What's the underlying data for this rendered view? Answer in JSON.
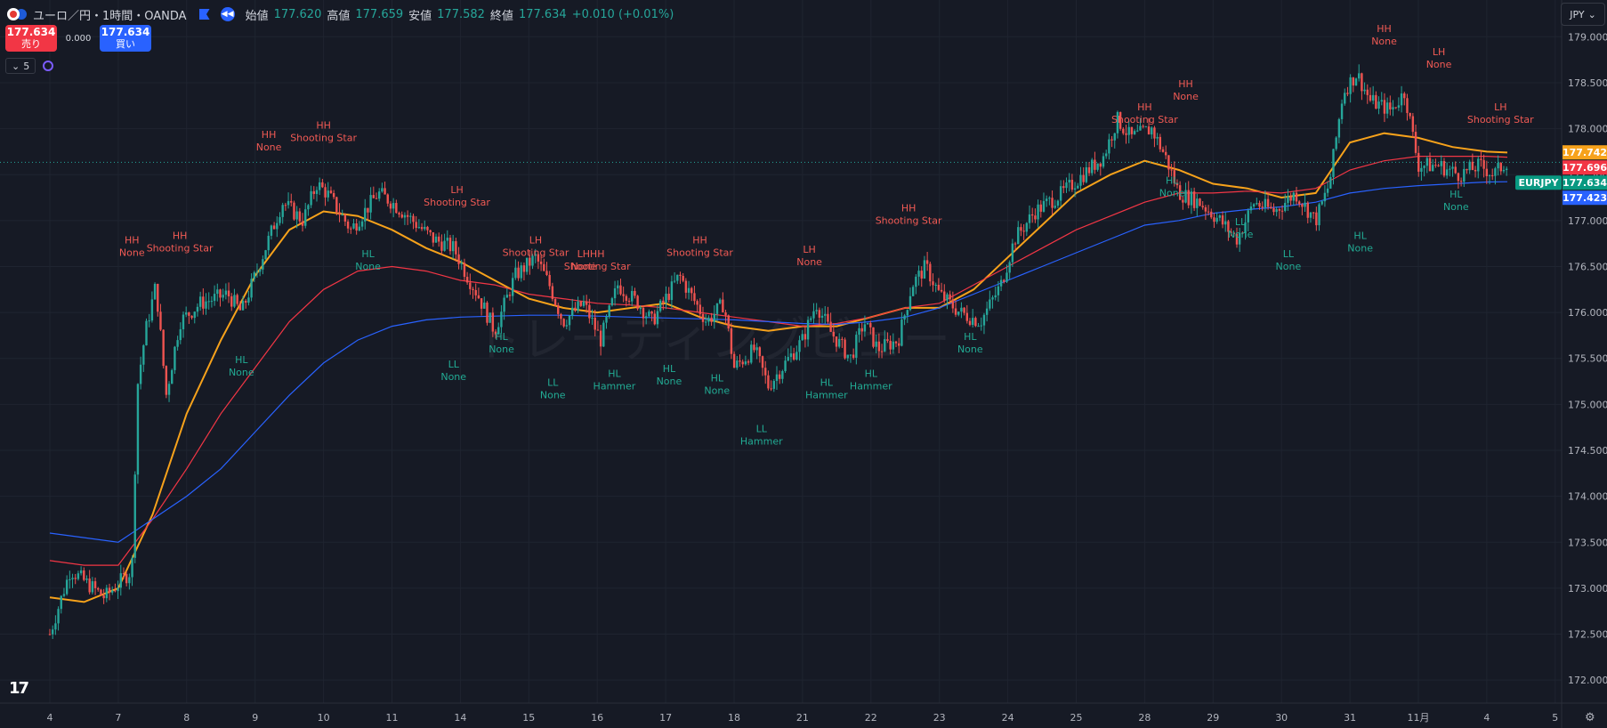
{
  "header": {
    "symbol_title": "ユーロ／円・1時間・OANDA",
    "open_label": "始値",
    "open_value": "177.620",
    "high_label": "高値",
    "high_value": "177.659",
    "low_label": "安値",
    "low_value": "177.582",
    "close_label": "終値",
    "close_value": "177.634",
    "change": "+0.010 (+0.01%)"
  },
  "trade": {
    "sell_price": "177.634",
    "sell_label": "売り",
    "spread": "0.000",
    "buy_price": "177.634",
    "buy_label": "買い"
  },
  "indicators_toggle": {
    "count": "5"
  },
  "currency_button": {
    "label": "JPY"
  },
  "watermark": "トレーディングビュー",
  "colors": {
    "background": "#161a25",
    "grid": "#1f2430",
    "up": "#26a69a",
    "down": "#ef5350",
    "ma_fast": "#f7a21b",
    "ma_mid": "#f23645",
    "ma_slow": "#2962ff",
    "label_high": "#f05a54",
    "label_low": "#22ab94"
  },
  "chart_data": {
    "type": "candlestick",
    "symbol": "EURJPY",
    "ylim": [
      171.75,
      179.4
    ],
    "y_ticks": [
      "172.000",
      "172.500",
      "173.000",
      "173.500",
      "174.000",
      "174.500",
      "175.000",
      "175.500",
      "176.000",
      "176.500",
      "177.000",
      "177.500",
      "178.000",
      "178.500",
      "179.000"
    ],
    "x_ticks": [
      {
        "label": "4",
        "pos": 0
      },
      {
        "label": "7",
        "pos": 1
      },
      {
        "label": "8",
        "pos": 2
      },
      {
        "label": "9",
        "pos": 3
      },
      {
        "label": "10",
        "pos": 4
      },
      {
        "label": "11",
        "pos": 5
      },
      {
        "label": "14",
        "pos": 6
      },
      {
        "label": "15",
        "pos": 7
      },
      {
        "label": "16",
        "pos": 8
      },
      {
        "label": "17",
        "pos": 9
      },
      {
        "label": "18",
        "pos": 10
      },
      {
        "label": "21",
        "pos": 11
      },
      {
        "label": "22",
        "pos": 12
      },
      {
        "label": "23",
        "pos": 13
      },
      {
        "label": "24",
        "pos": 14
      },
      {
        "label": "25",
        "pos": 15
      },
      {
        "label": "28",
        "pos": 16
      },
      {
        "label": "29",
        "pos": 17
      },
      {
        "label": "30",
        "pos": 18
      },
      {
        "label": "31",
        "pos": 19
      },
      {
        "label": "11月",
        "pos": 20
      },
      {
        "label": "4",
        "pos": 21
      },
      {
        "label": "5",
        "pos": 22
      }
    ],
    "price_path": [
      [
        0,
        172.5
      ],
      [
        0.3,
        173.2
      ],
      [
        0.8,
        172.9
      ],
      [
        1.2,
        173.2
      ],
      [
        1.28,
        175.2
      ],
      [
        1.4,
        175.8
      ],
      [
        1.55,
        176.3
      ],
      [
        1.7,
        175.1
      ],
      [
        1.9,
        175.9
      ],
      [
        2.2,
        176.1
      ],
      [
        2.6,
        176.2
      ],
      [
        2.8,
        176.0
      ],
      [
        3.1,
        176.6
      ],
      [
        3.4,
        177.2
      ],
      [
        3.7,
        177.0
      ],
      [
        3.9,
        177.4
      ],
      [
        4.05,
        177.3
      ],
      [
        4.4,
        176.9
      ],
      [
        4.8,
        177.3
      ],
      [
        5.0,
        177.2
      ],
      [
        5.3,
        177.0
      ],
      [
        5.6,
        176.8
      ],
      [
        5.9,
        176.7
      ],
      [
        6.1,
        176.4
      ],
      [
        6.25,
        176.2
      ],
      [
        6.5,
        175.8
      ],
      [
        6.8,
        176.4
      ],
      [
        7.1,
        176.6
      ],
      [
        7.3,
        176.3
      ],
      [
        7.5,
        175.9
      ],
      [
        7.8,
        176.1
      ],
      [
        8.05,
        175.7
      ],
      [
        8.3,
        176.3
      ],
      [
        8.6,
        176.1
      ],
      [
        8.8,
        175.9
      ],
      [
        9.2,
        176.4
      ],
      [
        9.6,
        175.9
      ],
      [
        9.85,
        176.1
      ],
      [
        10.0,
        175.4
      ],
      [
        10.3,
        175.6
      ],
      [
        10.5,
        175.2
      ],
      [
        10.8,
        175.5
      ],
      [
        11.0,
        175.7
      ],
      [
        11.2,
        176.1
      ],
      [
        11.4,
        175.8
      ],
      [
        11.7,
        175.5
      ],
      [
        11.9,
        175.9
      ],
      [
        12.1,
        175.6
      ],
      [
        12.4,
        175.7
      ],
      [
        12.6,
        176.3
      ],
      [
        12.8,
        176.5
      ],
      [
        13.0,
        176.2
      ],
      [
        13.3,
        176.0
      ],
      [
        13.6,
        175.9
      ],
      [
        13.9,
        176.3
      ],
      [
        14.1,
        176.8
      ],
      [
        14.4,
        177.1
      ],
      [
        14.8,
        177.3
      ],
      [
        15.1,
        177.5
      ],
      [
        15.4,
        177.7
      ],
      [
        15.6,
        178.1
      ],
      [
        15.8,
        177.9
      ],
      [
        16.1,
        178.0
      ],
      [
        16.3,
        177.7
      ],
      [
        16.5,
        177.3
      ],
      [
        16.8,
        177.2
      ],
      [
        17.1,
        177.0
      ],
      [
        17.35,
        176.8
      ],
      [
        17.6,
        177.2
      ],
      [
        17.9,
        177.1
      ],
      [
        18.2,
        177.3
      ],
      [
        18.5,
        177.0
      ],
      [
        18.7,
        177.4
      ],
      [
        18.9,
        178.4
      ],
      [
        19.1,
        178.6
      ],
      [
        19.3,
        178.3
      ],
      [
        19.6,
        178.2
      ],
      [
        19.8,
        178.4
      ],
      [
        20.0,
        177.6
      ],
      [
        20.3,
        177.6
      ],
      [
        20.6,
        177.5
      ],
      [
        20.9,
        177.6
      ],
      [
        21.1,
        177.5
      ],
      [
        21.3,
        177.65
      ]
    ],
    "series": [
      {
        "name": "MA fast",
        "color": "#f7a21b",
        "points": [
          [
            0,
            172.9
          ],
          [
            0.5,
            172.85
          ],
          [
            1.0,
            173.0
          ],
          [
            1.5,
            173.8
          ],
          [
            2.0,
            174.9
          ],
          [
            2.5,
            175.7
          ],
          [
            3.0,
            176.4
          ],
          [
            3.5,
            176.9
          ],
          [
            4.0,
            177.1
          ],
          [
            4.5,
            177.05
          ],
          [
            5.0,
            176.9
          ],
          [
            5.5,
            176.7
          ],
          [
            6.0,
            176.55
          ],
          [
            6.5,
            176.35
          ],
          [
            7.0,
            176.15
          ],
          [
            7.5,
            176.05
          ],
          [
            8.0,
            176.0
          ],
          [
            8.5,
            176.05
          ],
          [
            9.0,
            176.1
          ],
          [
            9.5,
            175.95
          ],
          [
            10.0,
            175.85
          ],
          [
            10.5,
            175.8
          ],
          [
            11.0,
            175.85
          ],
          [
            11.5,
            175.85
          ],
          [
            12.0,
            175.95
          ],
          [
            12.5,
            176.05
          ],
          [
            13.0,
            176.05
          ],
          [
            13.5,
            176.25
          ],
          [
            14.0,
            176.6
          ],
          [
            14.5,
            176.95
          ],
          [
            15.0,
            177.3
          ],
          [
            15.5,
            177.5
          ],
          [
            16.0,
            177.65
          ],
          [
            16.5,
            177.55
          ],
          [
            17.0,
            177.4
          ],
          [
            17.5,
            177.35
          ],
          [
            18.0,
            177.25
          ],
          [
            18.5,
            177.3
          ],
          [
            19.0,
            177.85
          ],
          [
            19.5,
            177.95
          ],
          [
            20.0,
            177.9
          ],
          [
            20.5,
            177.8
          ],
          [
            21.0,
            177.75
          ],
          [
            21.3,
            177.74
          ]
        ]
      },
      {
        "name": "MA mid",
        "color": "#f23645",
        "points": [
          [
            0,
            173.3
          ],
          [
            0.5,
            173.25
          ],
          [
            1.0,
            173.25
          ],
          [
            1.5,
            173.75
          ],
          [
            2.0,
            174.3
          ],
          [
            2.5,
            174.9
          ],
          [
            3.0,
            175.4
          ],
          [
            3.5,
            175.9
          ],
          [
            4.0,
            176.25
          ],
          [
            4.5,
            176.45
          ],
          [
            5.0,
            176.5
          ],
          [
            5.5,
            176.45
          ],
          [
            6.0,
            176.35
          ],
          [
            6.5,
            176.3
          ],
          [
            7.0,
            176.2
          ],
          [
            7.5,
            176.15
          ],
          [
            8.0,
            176.1
          ],
          [
            8.5,
            176.08
          ],
          [
            9.0,
            176.05
          ],
          [
            9.5,
            176.0
          ],
          [
            10.0,
            175.95
          ],
          [
            10.5,
            175.9
          ],
          [
            11.0,
            175.85
          ],
          [
            11.5,
            175.88
          ],
          [
            12.0,
            175.95
          ],
          [
            12.5,
            176.05
          ],
          [
            13.0,
            176.1
          ],
          [
            13.5,
            176.3
          ],
          [
            14.0,
            176.5
          ],
          [
            14.5,
            176.7
          ],
          [
            15.0,
            176.9
          ],
          [
            15.5,
            177.05
          ],
          [
            16.0,
            177.2
          ],
          [
            16.5,
            177.3
          ],
          [
            17.0,
            177.3
          ],
          [
            17.5,
            177.32
          ],
          [
            18.0,
            177.3
          ],
          [
            18.5,
            177.35
          ],
          [
            19.0,
            177.55
          ],
          [
            19.5,
            177.65
          ],
          [
            20.0,
            177.7
          ],
          [
            20.5,
            177.7
          ],
          [
            21.0,
            177.7
          ],
          [
            21.3,
            177.69
          ]
        ]
      },
      {
        "name": "MA slow",
        "color": "#2962ff",
        "points": [
          [
            0,
            173.6
          ],
          [
            0.5,
            173.55
          ],
          [
            1.0,
            173.5
          ],
          [
            1.5,
            173.75
          ],
          [
            2.0,
            174.0
          ],
          [
            2.5,
            174.3
          ],
          [
            3.0,
            174.7
          ],
          [
            3.5,
            175.1
          ],
          [
            4.0,
            175.45
          ],
          [
            4.5,
            175.7
          ],
          [
            5.0,
            175.85
          ],
          [
            5.5,
            175.92
          ],
          [
            6.0,
            175.95
          ],
          [
            6.5,
            175.96
          ],
          [
            7.0,
            175.97
          ],
          [
            7.5,
            175.97
          ],
          [
            8.0,
            175.96
          ],
          [
            8.5,
            175.95
          ],
          [
            9.0,
            175.94
          ],
          [
            9.5,
            175.93
          ],
          [
            10.0,
            175.92
          ],
          [
            10.5,
            175.9
          ],
          [
            11.0,
            175.88
          ],
          [
            11.5,
            175.87
          ],
          [
            12.0,
            175.9
          ],
          [
            12.5,
            175.95
          ],
          [
            13.0,
            176.05
          ],
          [
            13.5,
            176.2
          ],
          [
            14.0,
            176.35
          ],
          [
            14.5,
            176.5
          ],
          [
            15.0,
            176.65
          ],
          [
            15.5,
            176.8
          ],
          [
            16.0,
            176.95
          ],
          [
            16.5,
            177.0
          ],
          [
            17.0,
            177.08
          ],
          [
            17.5,
            177.12
          ],
          [
            18.0,
            177.15
          ],
          [
            18.5,
            177.2
          ],
          [
            19.0,
            177.3
          ],
          [
            19.5,
            177.35
          ],
          [
            20.0,
            177.38
          ],
          [
            20.5,
            177.4
          ],
          [
            21.0,
            177.42
          ],
          [
            21.3,
            177.423
          ]
        ]
      }
    ],
    "current_price_line": 177.634,
    "price_labels": [
      {
        "value": 177.742,
        "text": "177.742",
        "color": "#f7a21b"
      },
      {
        "value": 177.696,
        "text": "177.696",
        "color": "#f23645"
      },
      {
        "value": 177.634,
        "text": "EURJPY",
        "text2": "177.634",
        "color": "#089981"
      },
      {
        "value": 177.423,
        "text": "177.423",
        "color": "#2962ff"
      }
    ],
    "annotations": [
      {
        "x": 1.2,
        "y": 176.75,
        "kind": "high",
        "lines": [
          "HH",
          "None"
        ]
      },
      {
        "x": 1.9,
        "y": 176.8,
        "kind": "high",
        "lines": [
          "HH",
          "Shooting Star"
        ]
      },
      {
        "x": 2.8,
        "y": 175.45,
        "kind": "low",
        "lines": [
          "HL",
          "None"
        ]
      },
      {
        "x": 3.2,
        "y": 177.9,
        "kind": "high",
        "lines": [
          "HH",
          "None"
        ]
      },
      {
        "x": 4.0,
        "y": 178.0,
        "kind": "high",
        "lines": [
          "HH",
          "Shooting Star"
        ]
      },
      {
        "x": 4.65,
        "y": 176.6,
        "kind": "low",
        "lines": [
          "HL",
          "None"
        ]
      },
      {
        "x": 5.95,
        "y": 177.3,
        "kind": "high",
        "lines": [
          "LH",
          "Shooting Star"
        ]
      },
      {
        "x": 5.9,
        "y": 175.4,
        "kind": "low",
        "lines": [
          "LL",
          "None"
        ]
      },
      {
        "x": 6.6,
        "y": 175.7,
        "kind": "low",
        "lines": [
          "HL",
          "None"
        ]
      },
      {
        "x": 7.1,
        "y": 176.75,
        "kind": "high",
        "lines": [
          "LH",
          "Shooting Star"
        ]
      },
      {
        "x": 7.35,
        "y": 175.2,
        "kind": "low",
        "lines": [
          "LL",
          "None"
        ]
      },
      {
        "x": 7.8,
        "y": 176.6,
        "kind": "high",
        "lines": [
          "LH",
          "None"
        ]
      },
      {
        "x": 8.0,
        "y": 176.6,
        "kind": "high",
        "lines": [
          "HH",
          "Shooting Star"
        ]
      },
      {
        "x": 8.25,
        "y": 175.3,
        "kind": "low",
        "lines": [
          "HL",
          "Hammer"
        ]
      },
      {
        "x": 9.05,
        "y": 175.35,
        "kind": "low",
        "lines": [
          "HL",
          "None"
        ]
      },
      {
        "x": 9.5,
        "y": 176.75,
        "kind": "high",
        "lines": [
          "HH",
          "Shooting Star"
        ]
      },
      {
        "x": 9.75,
        "y": 175.25,
        "kind": "low",
        "lines": [
          "HL",
          "None"
        ]
      },
      {
        "x": 10.4,
        "y": 174.7,
        "kind": "low",
        "lines": [
          "LL",
          "Hammer"
        ]
      },
      {
        "x": 11.1,
        "y": 176.65,
        "kind": "high",
        "lines": [
          "LH",
          "None"
        ]
      },
      {
        "x": 11.35,
        "y": 175.2,
        "kind": "low",
        "lines": [
          "HL",
          "Hammer"
        ]
      },
      {
        "x": 12.0,
        "y": 175.3,
        "kind": "low",
        "lines": [
          "HL",
          "Hammer"
        ]
      },
      {
        "x": 12.55,
        "y": 177.1,
        "kind": "high",
        "lines": [
          "HH",
          "Shooting Star"
        ]
      },
      {
        "x": 13.45,
        "y": 175.7,
        "kind": "low",
        "lines": [
          "HL",
          "None"
        ]
      },
      {
        "x": 16.0,
        "y": 178.2,
        "kind": "high",
        "lines": [
          "HH",
          "Shooting Star"
        ]
      },
      {
        "x": 16.6,
        "y": 178.45,
        "kind": "high",
        "lines": [
          "HH",
          "None"
        ]
      },
      {
        "x": 16.4,
        "y": 177.4,
        "kind": "low",
        "lines": [
          "HL",
          "None"
        ]
      },
      {
        "x": 17.4,
        "y": 176.95,
        "kind": "low",
        "lines": [
          "LL",
          "None"
        ]
      },
      {
        "x": 18.1,
        "y": 176.6,
        "kind": "low",
        "lines": [
          "LL",
          "None"
        ]
      },
      {
        "x": 19.15,
        "y": 176.8,
        "kind": "low",
        "lines": [
          "HL",
          "None"
        ]
      },
      {
        "x": 19.5,
        "y": 179.05,
        "kind": "high",
        "lines": [
          "HH",
          "None"
        ]
      },
      {
        "x": 20.3,
        "y": 178.8,
        "kind": "high",
        "lines": [
          "LH",
          "None"
        ]
      },
      {
        "x": 20.55,
        "y": 177.25,
        "kind": "low",
        "lines": [
          "HL",
          "None"
        ]
      },
      {
        "x": 21.2,
        "y": 178.2,
        "kind": "high",
        "lines": [
          "LH",
          "Shooting Star"
        ]
      }
    ]
  }
}
